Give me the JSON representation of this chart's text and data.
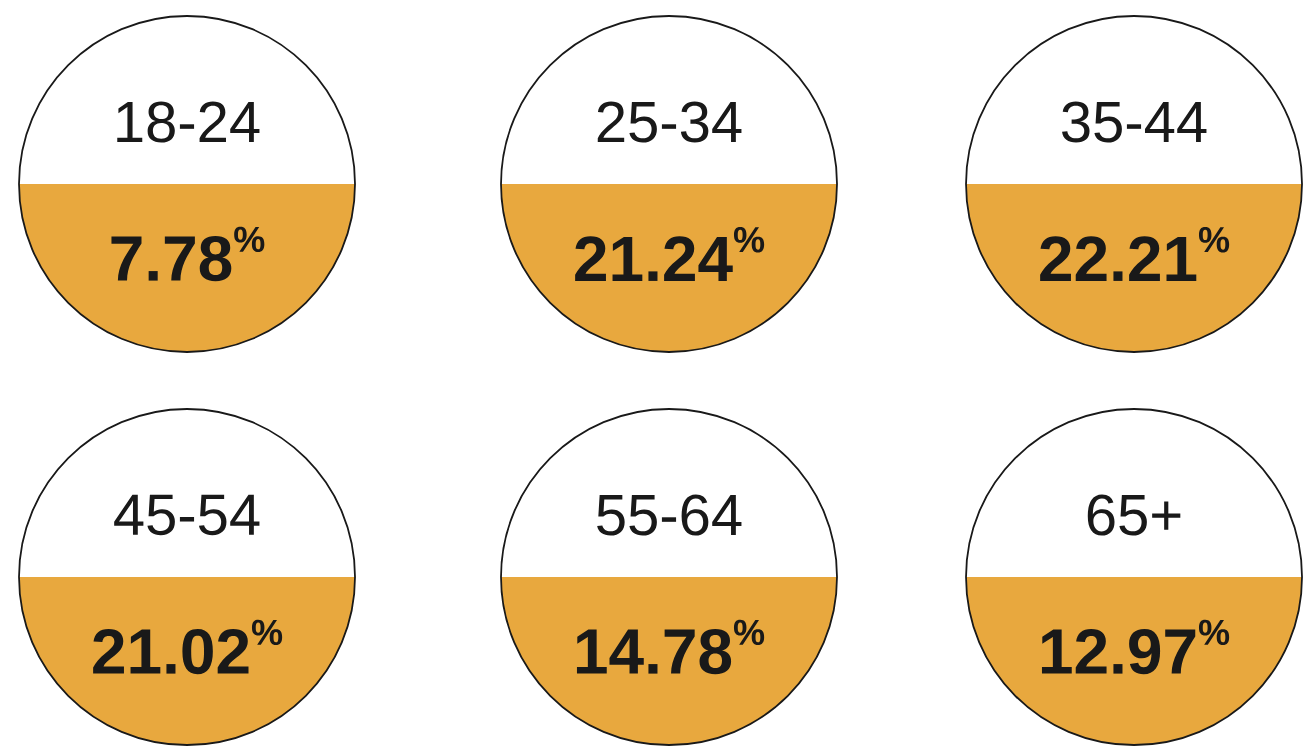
{
  "chart_data": {
    "type": "other",
    "categories": [
      "18-24",
      "25-34",
      "35-44",
      "45-54",
      "55-64",
      "65+"
    ],
    "values": [
      7.78,
      21.24,
      22.21,
      21.02,
      14.78,
      12.97
    ],
    "annotations": [
      "%",
      "%",
      "%",
      "%",
      "%",
      "%"
    ],
    "color": "#e8a83e",
    "data_labels": true
  }
}
